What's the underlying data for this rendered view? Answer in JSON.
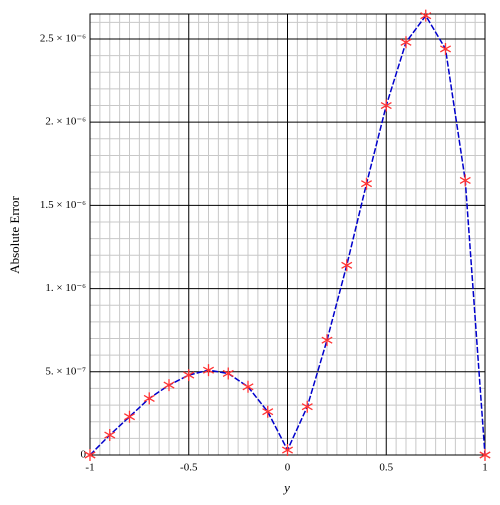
{
  "chart_data": {
    "type": "line",
    "xlabel": "y",
    "ylabel": "Absolute Error",
    "x": [
      -1,
      -0.9,
      -0.8,
      -0.7,
      -0.6,
      -0.5,
      -0.4,
      -0.3,
      -0.2,
      -0.1,
      0,
      0.1,
      0.2,
      0.3,
      0.4,
      0.5,
      0.6,
      0.7,
      0.8,
      0.9,
      1
    ],
    "series": [
      {
        "color": "#0000cc",
        "marker_color": "#ff3333",
        "values": [
          0,
          1.2e-07,
          2.3e-07,
          3.4e-07,
          4.2e-07,
          4.8e-07,
          5.1e-07,
          4.9e-07,
          4.1e-07,
          2.6e-07,
          3e-08,
          2.9e-07,
          6.9e-07,
          1.14e-06,
          1.63e-06,
          2.1e-06,
          2.48e-06,
          2.64e-06,
          2.44e-06,
          1.65e-06,
          0
        ]
      }
    ],
    "xlim": [
      -1,
      1
    ],
    "ylim": [
      0,
      2.65e-06
    ],
    "xticks": [
      -1,
      -0.5,
      0,
      0.5,
      1
    ],
    "yticks": [
      0,
      {
        "value": 5e-07,
        "label": "5. × 10⁻⁷"
      },
      {
        "value": 1e-06,
        "label": "1. × 10⁻⁶"
      },
      {
        "value": 1.5e-06,
        "label": "1.5 × 10⁻⁶"
      },
      {
        "value": 2e-06,
        "label": "2. × 10⁻⁶"
      },
      {
        "value": 2.5e-06,
        "label": "2.5 × 10⁻⁶"
      }
    ],
    "grid": true
  }
}
